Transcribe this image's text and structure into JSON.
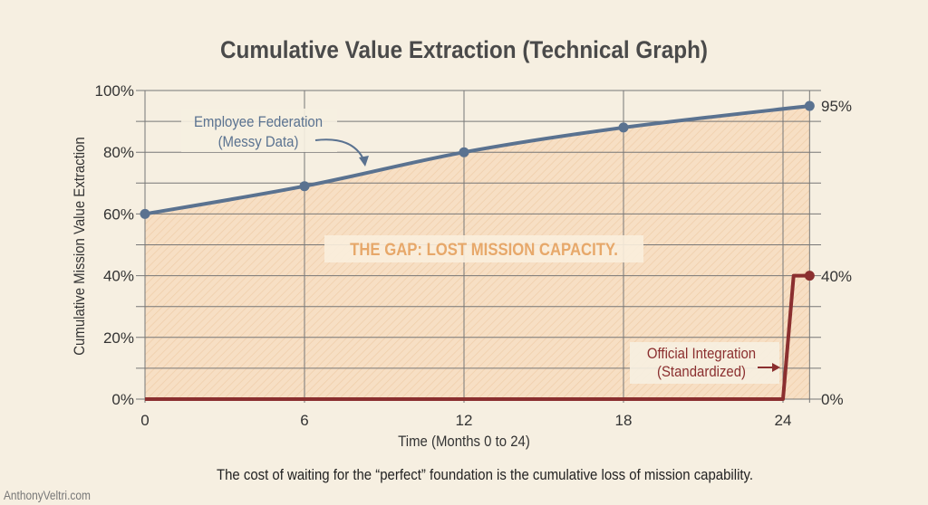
{
  "chart_data": {
    "type": "line",
    "title": "Cumulative Value Extraction (Technical Graph)",
    "xlabel": "Time (Months 0 to 24)",
    "ylabel": "Cumulative Mission Value Extraction",
    "xlim": [
      0,
      25
    ],
    "ylim": [
      0,
      100
    ],
    "x_ticks": [
      "0",
      "6",
      "12",
      "18",
      "24"
    ],
    "y_ticks": [
      "0%",
      "20%",
      "40%",
      "60%",
      "80%",
      "100%"
    ],
    "grid": true,
    "series": [
      {
        "name": "Employee Federation (Messy Data)",
        "color": "#5a7290",
        "x": [
          0,
          6,
          12,
          18,
          25
        ],
        "y": [
          60,
          69,
          80,
          88,
          95
        ]
      },
      {
        "name": "Official Integration (Standardized)",
        "color": "#8b2f2f",
        "x": [
          0,
          24,
          24.4,
          25
        ],
        "y": [
          0,
          0,
          40,
          40
        ]
      }
    ],
    "end_labels": [
      "95%",
      "40%",
      "0%"
    ],
    "annotations": {
      "federation_line1": "Employee Federation",
      "federation_line2": "(Messy Data)",
      "official_line1": "Official Integration",
      "official_line2": "(Standardized)",
      "gap": "THE GAP: LOST MISSION CAPACITY."
    },
    "caption": "The cost of waiting for the “perfect” foundation is the cumulative loss of mission capability.",
    "watermark": "AnthonyVeltri.com",
    "colors": {
      "background": "#f6efe1",
      "fill": "#f5dcc0",
      "gap_text": "#e7a86a",
      "grid": "#777777"
    }
  }
}
